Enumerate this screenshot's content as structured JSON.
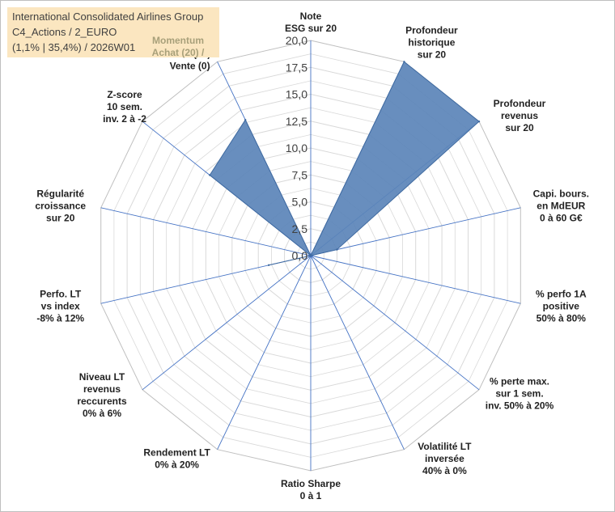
{
  "header": {
    "line1": "International Consolidated Airlines Group",
    "line2": "C4_Actions / 2_EURO",
    "line3": "(1,1% | 35,4%) / 2026W01"
  },
  "momentum": {
    "line1": "Momentum",
    "line2": "Achat (20) /",
    "line3": "Vente (0)"
  },
  "colors": {
    "fill": "#5b84b8",
    "stroke": "#3f6aa0",
    "grid": "#d9d9d9",
    "spoke": "#4472c4"
  },
  "chart_data": {
    "type": "radar",
    "range": [
      0,
      20
    ],
    "tick_step": 1.25,
    "tick_labels": [
      "0,0",
      "2,5",
      "5,0",
      "7,5",
      "10,0",
      "12,5",
      "15,0",
      "17,5",
      "20,0"
    ],
    "axes": [
      {
        "lines": [
          "Note",
          "ESG sur 20"
        ],
        "value": 0
      },
      {
        "lines": [
          "Profondeur",
          "historique",
          "sur 20"
        ],
        "value": 20
      },
      {
        "lines": [
          "Profondeur",
          "revenus",
          "sur 20"
        ],
        "value": 20
      },
      {
        "lines": [
          "Capi. bours.",
          "en MdEUR",
          "0 à 60 G€"
        ],
        "value": 2.5
      },
      {
        "lines": [
          "% perfo 1A",
          "positive",
          "50% à 80%"
        ],
        "value": 0
      },
      {
        "lines": [
          "% perte max.",
          "sur 1 sem.",
          "inv. 50% à 20%"
        ],
        "value": 0
      },
      {
        "lines": [
          "Volatilité LT",
          "inversée",
          "40% à 0%"
        ],
        "value": 0
      },
      {
        "lines": [
          "Ratio Sharpe",
          "0 à 1"
        ],
        "value": 0
      },
      {
        "lines": [
          "Rendement LT",
          "0% à 20%"
        ],
        "value": 0
      },
      {
        "lines": [
          "Niveau LT",
          "revenus",
          "reccurents",
          "0% à 6%"
        ],
        "value": 0
      },
      {
        "lines": [
          "Perfo. LT",
          "vs index",
          "-8% à 12%"
        ],
        "value": 4
      },
      {
        "lines": [
          "Régularité",
          "croissance",
          "sur 20"
        ],
        "value": 0
      },
      {
        "lines": [
          "Z-score",
          "10 sem.",
          "inv. 2 à -2"
        ],
        "value": 12
      },
      {
        "lines": [
          "Momentum",
          "Achat (20) /",
          "Vente (0)"
        ],
        "value": 14
      }
    ]
  }
}
